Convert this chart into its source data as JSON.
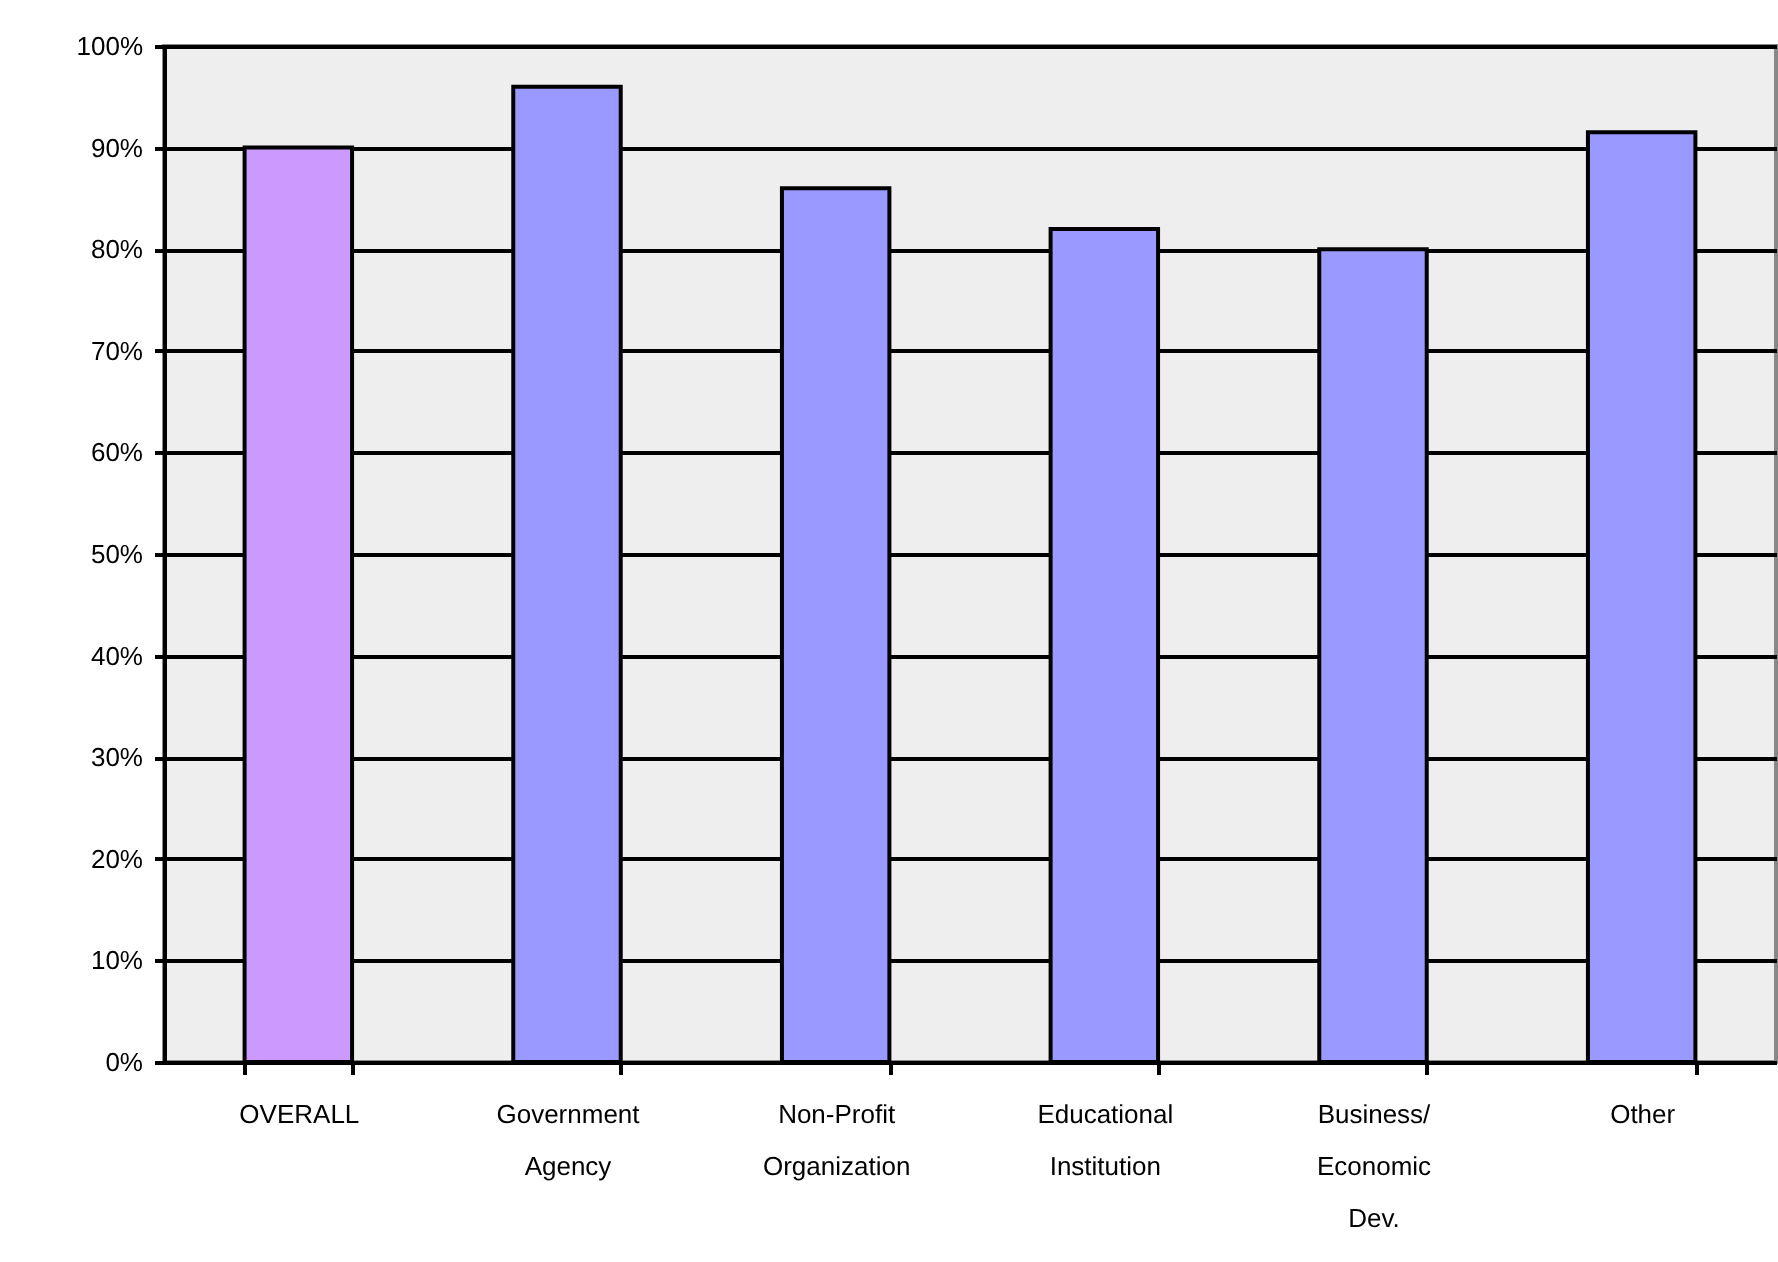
{
  "chart_data": {
    "type": "bar",
    "categories": [
      "OVERALL",
      "Government Agency",
      "Non-Profit Organization",
      "Educational Institution",
      "Business/ Economic Dev.",
      "Other"
    ],
    "values": [
      90,
      96,
      86,
      82,
      80,
      91.5
    ],
    "colors": [
      "#cc99ff",
      "#9999ff",
      "#9999ff",
      "#9999ff",
      "#9999ff",
      "#9999ff"
    ],
    "ylim": [
      0,
      100
    ],
    "yticks": [
      {
        "value": 0,
        "label": "0%"
      },
      {
        "value": 10,
        "label": "10%"
      },
      {
        "value": 20,
        "label": "20%"
      },
      {
        "value": 30,
        "label": "30%"
      },
      {
        "value": 40,
        "label": "40%"
      },
      {
        "value": 50,
        "label": "50%"
      },
      {
        "value": 60,
        "label": "60%"
      },
      {
        "value": 70,
        "label": "70%"
      },
      {
        "value": 80,
        "label": "80%"
      },
      {
        "value": 90,
        "label": "90%"
      },
      {
        "value": 100,
        "label": "100%"
      }
    ],
    "grid": "y"
  }
}
